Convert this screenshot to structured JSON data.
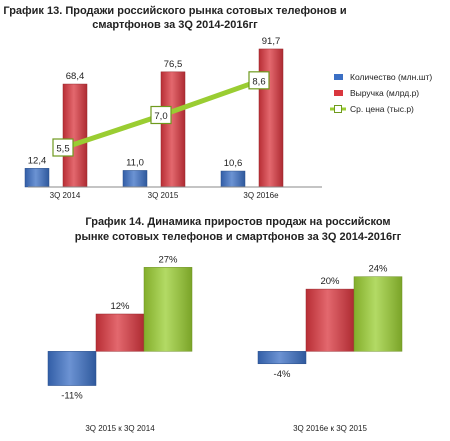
{
  "chart_data": [
    {
      "type": "bar",
      "title_lines": [
        "График 13. Продажи российского  рынка сотовых телефонов и",
        "смартфонов за 3Q 2014-2016гг"
      ],
      "categories": [
        "3Q 2014",
        "3Q 2015",
        "3Q 2016e"
      ],
      "series": [
        {
          "name": "Количество (млн.шт)",
          "type": "bar",
          "color": "#3b6fc4",
          "values": [
            12.4,
            11.0,
            10.6
          ],
          "labels": [
            "12,4",
            "11,0",
            "10,6"
          ]
        },
        {
          "name": "Выручка (млрд.р)",
          "type": "bar",
          "color": "#d9363e",
          "values": [
            68.4,
            76.5,
            91.7
          ],
          "labels": [
            "68,4",
            "76,5",
            "91,7"
          ]
        },
        {
          "name": "Ср. цена (тыс.р)",
          "type": "line",
          "color": "#9acd32",
          "values": [
            5.5,
            7.0,
            8.6
          ],
          "labels": [
            "5,5",
            "7,0",
            "8,6"
          ]
        }
      ],
      "ylim": [
        0,
        95
      ],
      "line_ylim": [
        3.7,
        10.3
      ],
      "grid": false,
      "legend": "right"
    },
    {
      "type": "bar",
      "title_lines": [
        "График 14. Динамика приростов продаж на российском",
        "рынке сотовых телефонов и смартфонов за 3Q 2014-2016гг"
      ],
      "categories": [
        "3Q 2015 к 3Q 2014",
        "3Q 2016е к 3Q 2015"
      ],
      "series": [
        {
          "name": "Количество (млн.шт)",
          "color": "#3b6fc4",
          "values": [
            -11,
            -4
          ],
          "labels": [
            "-11%",
            "-4%"
          ]
        },
        {
          "name": "Выручка (млрд.р)",
          "color": "#d9363e",
          "values": [
            12,
            20
          ],
          "labels": [
            "12%",
            "20%"
          ]
        },
        {
          "name": "Ср. цена (тыс.р)",
          "color": "#9acd32",
          "values": [
            27,
            24
          ],
          "labels": [
            "27%",
            "24%"
          ]
        }
      ],
      "ylim": [
        -15,
        30
      ],
      "grid": false,
      "legend": "none"
    }
  ]
}
